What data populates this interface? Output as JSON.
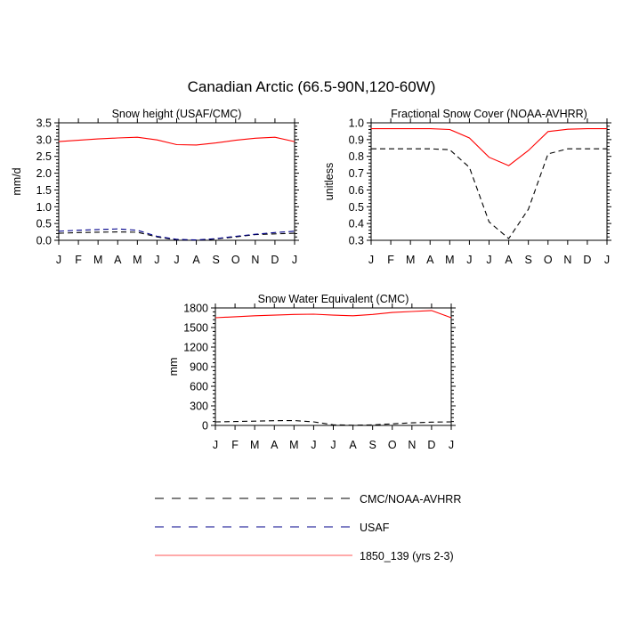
{
  "figure": {
    "title": "Canadian Arctic (66.5-90N,120-60W)"
  },
  "legend": [
    {
      "label": "CMC/NOAA-AVHRR",
      "color": "#000000",
      "dash": "dashed"
    },
    {
      "label": "USAF",
      "color": "#00008b",
      "dash": "dashed"
    },
    {
      "label": "1850_139 (yrs 2-3)",
      "color": "#ff0000",
      "dash": "solid"
    }
  ],
  "chart_data": [
    {
      "type": "line",
      "title": "Snow height (USAF/CMC)",
      "ylabel": "mm/d",
      "xlabel": "",
      "categories": [
        "J",
        "F",
        "M",
        "A",
        "M",
        "J",
        "J",
        "A",
        "S",
        "O",
        "N",
        "D",
        "J"
      ],
      "ylim": [
        0,
        3.5
      ],
      "yticks": [
        "0.0",
        "0.5",
        "1.0",
        "1.5",
        "2.0",
        "2.5",
        "3.0",
        "3.5"
      ],
      "series": [
        {
          "name": "1850_139 (yrs 2-3)",
          "color": "#ff0000",
          "dash": "solid",
          "values": [
            2.94,
            2.98,
            3.02,
            3.05,
            3.07,
            2.99,
            2.85,
            2.84,
            2.9,
            2.98,
            3.04,
            3.07,
            2.94
          ]
        },
        {
          "name": "USAF",
          "color": "#00008b",
          "dash": "dashed",
          "values": [
            0.27,
            0.3,
            0.32,
            0.34,
            0.3,
            0.12,
            0.03,
            0.01,
            0.05,
            0.12,
            0.18,
            0.23,
            0.27
          ]
        },
        {
          "name": "CMC/NOAA-AVHRR",
          "color": "#000000",
          "dash": "dashed",
          "values": [
            0.21,
            0.23,
            0.24,
            0.25,
            0.24,
            0.1,
            0.01,
            0.0,
            0.04,
            0.1,
            0.17,
            0.19,
            0.21
          ]
        }
      ]
    },
    {
      "type": "line",
      "title": "Fractional Snow Cover (NOAA-AVHRR)",
      "ylabel": "unitless",
      "xlabel": "",
      "categories": [
        "J",
        "F",
        "M",
        "A",
        "M",
        "J",
        "J",
        "A",
        "S",
        "O",
        "N",
        "D",
        "J"
      ],
      "ylim": [
        0.3,
        1.0
      ],
      "yticks": [
        "0.3",
        "0.4",
        "0.5",
        "0.6",
        "0.7",
        "0.8",
        "0.9",
        "1.0"
      ],
      "series": [
        {
          "name": "1850_139 (yrs 2-3)",
          "color": "#ff0000",
          "dash": "solid",
          "values": [
            0.965,
            0.965,
            0.965,
            0.965,
            0.96,
            0.91,
            0.795,
            0.745,
            0.835,
            0.948,
            0.962,
            0.965,
            0.965
          ]
        },
        {
          "name": "CMC/NOAA-AVHRR",
          "color": "#000000",
          "dash": "dashed",
          "values": [
            0.845,
            0.845,
            0.845,
            0.845,
            0.84,
            0.735,
            0.41,
            0.31,
            0.485,
            0.815,
            0.845,
            0.845,
            0.845
          ]
        }
      ]
    },
    {
      "type": "line",
      "title": "Snow Water Equivalent (CMC)",
      "ylabel": "mm",
      "xlabel": "",
      "categories": [
        "J",
        "F",
        "M",
        "A",
        "M",
        "J",
        "J",
        "A",
        "S",
        "O",
        "N",
        "D",
        "J"
      ],
      "ylim": [
        0,
        1800
      ],
      "yticks": [
        "0",
        "300",
        "600",
        "900",
        "1200",
        "1500",
        "1800"
      ],
      "series": [
        {
          "name": "1850_139 (yrs 2-3)",
          "color": "#ff0000",
          "dash": "solid",
          "values": [
            1650,
            1665,
            1680,
            1690,
            1700,
            1705,
            1690,
            1680,
            1700,
            1730,
            1745,
            1760,
            1650
          ]
        },
        {
          "name": "CMC/NOAA-AVHRR",
          "color": "#000000",
          "dash": "dashed",
          "values": [
            55,
            60,
            65,
            72,
            75,
            55,
            10,
            3,
            8,
            25,
            40,
            50,
            55
          ]
        }
      ]
    }
  ]
}
